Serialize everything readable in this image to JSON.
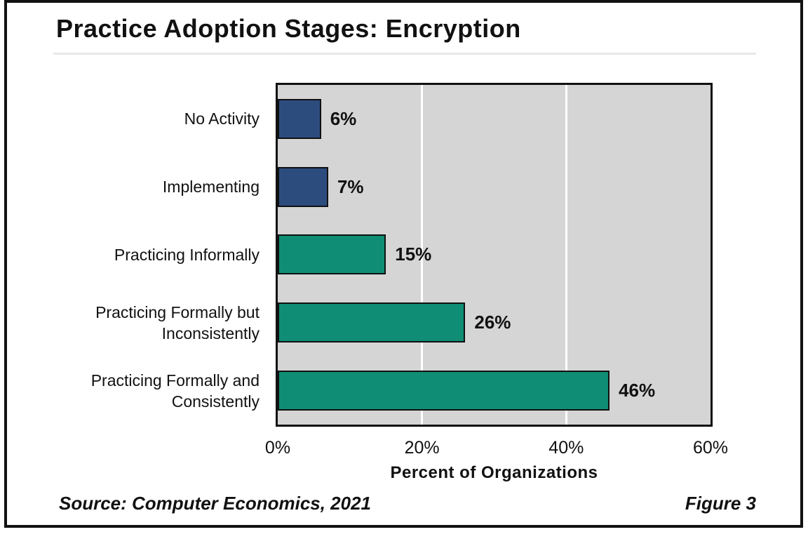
{
  "figure": {
    "title": "Practice Adoption Stages: Encryption",
    "source_note": "Source: Computer Economics, 2021",
    "figure_label": "Figure 3"
  },
  "chart_data": {
    "type": "bar",
    "orientation": "horizontal",
    "title": "Practice Adoption Stages: Encryption",
    "categories": [
      "No Activity",
      "Implementing",
      "Practicing Informally",
      "Practicing Formally but Inconsistently",
      "Practicing Formally and Consistently"
    ],
    "values": [
      6,
      7,
      15,
      26,
      46
    ],
    "value_labels": [
      "6%",
      "7%",
      "15%",
      "26%",
      "46%"
    ],
    "bar_colors": [
      "#2d4c7e",
      "#2d4c7e",
      "#108e75",
      "#108e75",
      "#108e75"
    ],
    "xlabel": "Percent of Organizations",
    "ylabel": "",
    "xlim": [
      0,
      60
    ],
    "xticks": [
      {
        "value": 0,
        "label": "0%"
      },
      {
        "value": 20,
        "label": "20%"
      },
      {
        "value": 40,
        "label": "40%"
      },
      {
        "value": 60,
        "label": "60%"
      }
    ],
    "grid": true,
    "gridline_color": "#ffffff",
    "plot_background": "#d5d5d5",
    "bar_border_color": "#111111",
    "legend": "none"
  },
  "colors": {
    "frame_border": "#111111",
    "divider": "#e8e8e8",
    "text": "#111111",
    "page_background": "#ffffff"
  }
}
